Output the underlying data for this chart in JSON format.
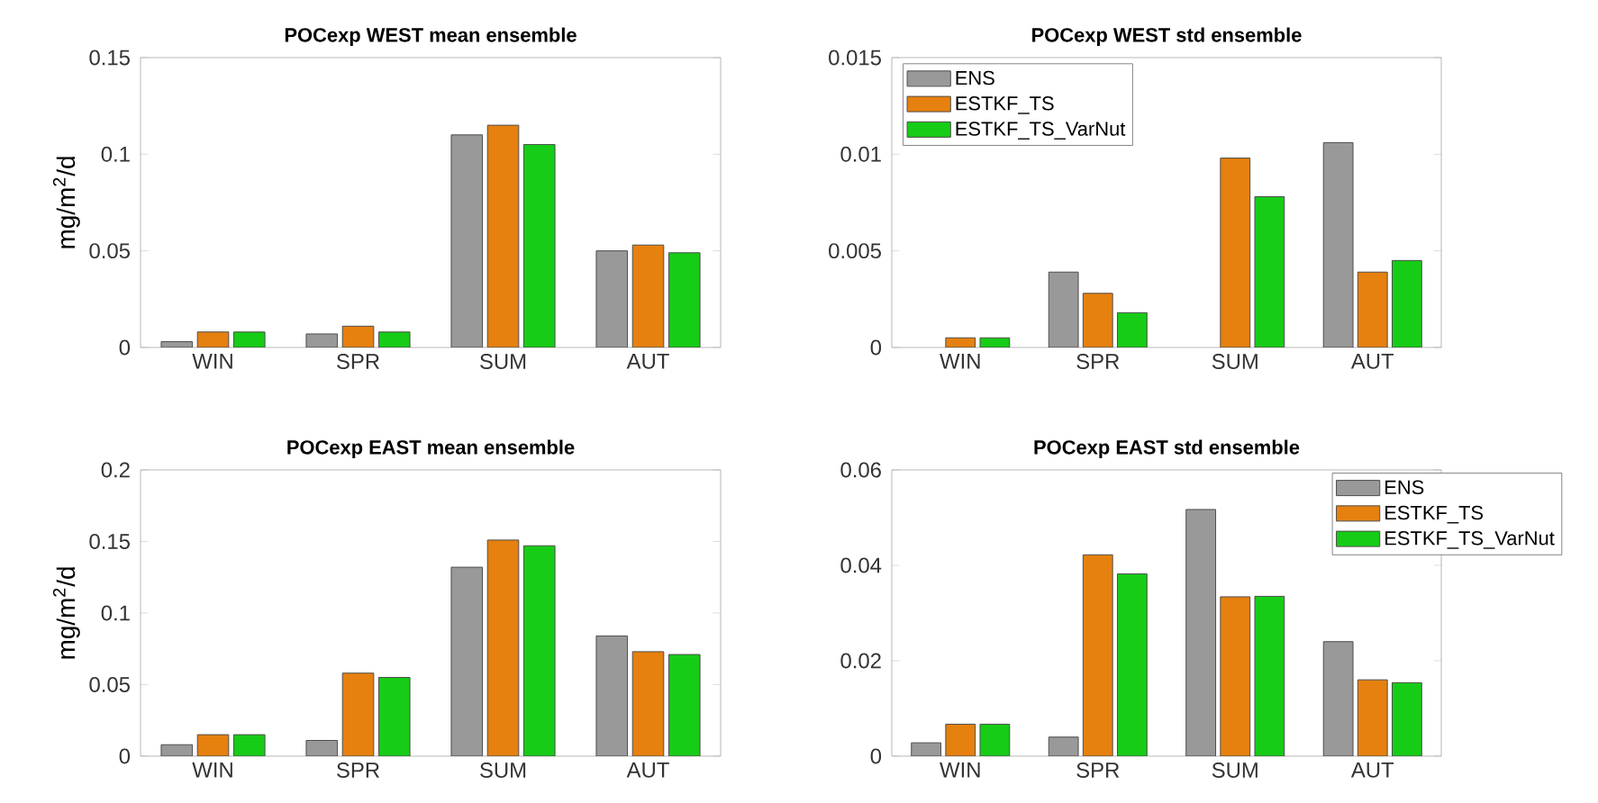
{
  "chart_data": [
    {
      "type": "bar",
      "title": "POCexp WEST mean ensemble",
      "ylabel": "mg/m$^{2}$/d",
      "categories": [
        "WIN",
        "SPR",
        "SUM",
        "AUT"
      ],
      "ylim": [
        0,
        0.15
      ],
      "yticks": [
        0,
        0.05,
        0.1,
        0.15
      ],
      "series": [
        {
          "color": "#999999",
          "values": [
            0.003,
            0.007,
            0.11,
            0.05
          ]
        },
        {
          "color": "#e6800f",
          "values": [
            0.008,
            0.011,
            0.115,
            0.053
          ]
        },
        {
          "color": "#17cc17",
          "values": [
            0.008,
            0.008,
            0.105,
            0.049
          ]
        }
      ]
    },
    {
      "type": "bar",
      "title": "POCexp WEST std ensemble",
      "categories": [
        "WIN",
        "SPR",
        "SUM",
        "AUT"
      ],
      "ylim": [
        0,
        0.015
      ],
      "yticks": [
        0,
        0.005,
        0.01,
        0.015
      ],
      "legend": "top left",
      "series": [
        {
          "name": "ENS",
          "color": "#999999",
          "values": [
            null,
            0.0039,
            null,
            0.0106
          ]
        },
        {
          "name": "ESTKF_TS",
          "color": "#e6800f",
          "values": [
            0.0005,
            0.0028,
            0.0098,
            0.0039
          ]
        },
        {
          "name": "ESTKF_TS_VarNut",
          "color": "#17cc17",
          "values": [
            0.0005,
            0.0018,
            0.0078,
            0.0045
          ]
        }
      ]
    },
    {
      "type": "bar",
      "title": "POCexp EAST mean ensemble",
      "ylabel": "mg/m$^{2}$/d",
      "categories": [
        "WIN",
        "SPR",
        "SUM",
        "AUT"
      ],
      "ylim": [
        0,
        0.2
      ],
      "yticks": [
        0,
        0.05,
        0.1,
        0.15,
        0.2
      ],
      "series": [
        {
          "color": "#999999",
          "values": [
            0.008,
            0.011,
            0.132,
            0.084
          ]
        },
        {
          "color": "#e6800f",
          "values": [
            0.015,
            0.058,
            0.151,
            0.073
          ]
        },
        {
          "color": "#17cc17",
          "values": [
            0.015,
            0.055,
            0.147,
            0.071
          ]
        }
      ]
    },
    {
      "type": "bar",
      "title": "POCexp EAST std ensemble",
      "categories": [
        "WIN",
        "SPR",
        "SUM",
        "AUT"
      ],
      "ylim": [
        0,
        0.06
      ],
      "yticks": [
        0,
        0.02,
        0.04,
        0.06
      ],
      "legend": "top right",
      "series": [
        {
          "name": "ENS",
          "color": "#999999",
          "values": [
            0.0028,
            0.004,
            0.0517,
            0.024
          ]
        },
        {
          "name": "ESTKF_TS",
          "color": "#e6800f",
          "values": [
            0.0067,
            0.0422,
            0.0334,
            0.016
          ]
        },
        {
          "name": "ESTKF_TS_VarNut",
          "color": "#17cc17",
          "values": [
            0.0067,
            0.0382,
            0.0335,
            0.0154
          ]
        }
      ]
    }
  ]
}
